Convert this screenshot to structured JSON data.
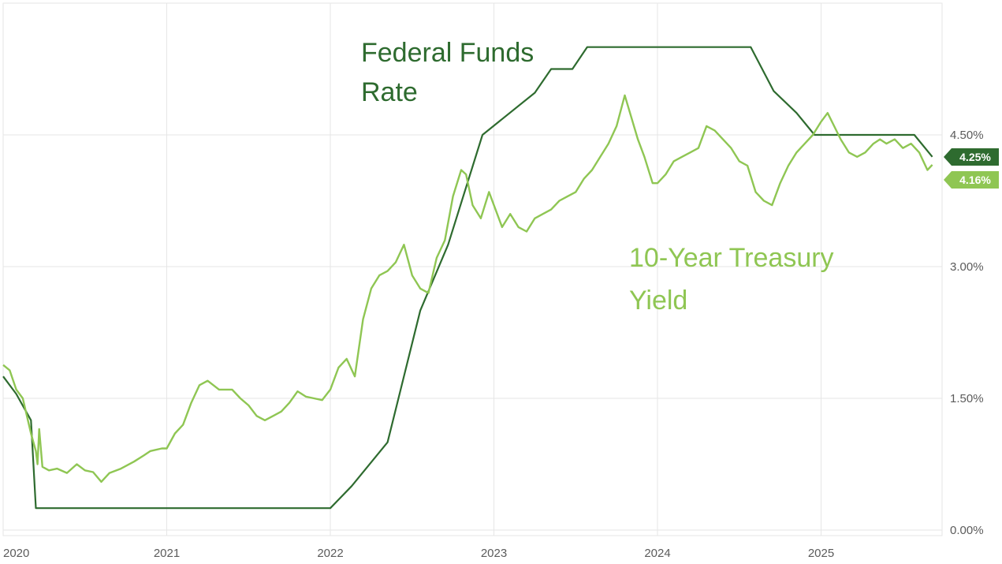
{
  "chart_data": {
    "type": "line",
    "title": "",
    "xlabel": "",
    "ylabel": "",
    "x_ticks": [
      "2020",
      "2021",
      "2022",
      "2023",
      "2024",
      "2025"
    ],
    "y_ticks": [
      "0.00%",
      "1.50%",
      "3.00%",
      "4.50%"
    ],
    "y_tick_values": [
      0,
      1.5,
      3.0,
      4.5
    ],
    "xlim": [
      2020.0,
      2025.73
    ],
    "ylim": [
      0,
      6.0
    ],
    "grid": true,
    "series": [
      {
        "name": "Federal Funds Rate",
        "label_lines": [
          "Federal Funds",
          "Rate"
        ],
        "color": "#2e6b2f",
        "end_value_label": "4.25%",
        "points": [
          [
            2020.0,
            1.75
          ],
          [
            2020.08,
            1.55
          ],
          [
            2020.17,
            1.25
          ],
          [
            2020.2,
            0.25
          ],
          [
            2021.0,
            0.25
          ],
          [
            2022.0,
            0.25
          ],
          [
            2022.13,
            0.5
          ],
          [
            2022.35,
            1.0
          ],
          [
            2022.55,
            2.5
          ],
          [
            2022.72,
            3.25
          ],
          [
            2022.93,
            4.5
          ],
          [
            2023.25,
            4.98
          ],
          [
            2023.35,
            5.25
          ],
          [
            2023.48,
            5.25
          ],
          [
            2023.57,
            5.5
          ],
          [
            2024.0,
            5.5
          ],
          [
            2024.57,
            5.5
          ],
          [
            2024.71,
            5.0
          ],
          [
            2024.85,
            4.75
          ],
          [
            2024.96,
            4.5
          ],
          [
            2025.0,
            4.5
          ],
          [
            2025.57,
            4.5
          ],
          [
            2025.68,
            4.25
          ]
        ]
      },
      {
        "name": "10-Year Treasury Yield",
        "label_lines": [
          "10-Year Treasury",
          "Yield"
        ],
        "color": "#8fc653",
        "end_value_label": "4.16%",
        "points": [
          [
            2020.0,
            1.88
          ],
          [
            2020.04,
            1.82
          ],
          [
            2020.08,
            1.6
          ],
          [
            2020.12,
            1.5
          ],
          [
            2020.17,
            1.1
          ],
          [
            2020.2,
            0.9
          ],
          [
            2020.21,
            0.75
          ],
          [
            2020.22,
            1.15
          ],
          [
            2020.24,
            0.72
          ],
          [
            2020.28,
            0.68
          ],
          [
            2020.33,
            0.7
          ],
          [
            2020.39,
            0.65
          ],
          [
            2020.45,
            0.75
          ],
          [
            2020.5,
            0.68
          ],
          [
            2020.55,
            0.66
          ],
          [
            2020.6,
            0.55
          ],
          [
            2020.65,
            0.65
          ],
          [
            2020.72,
            0.7
          ],
          [
            2020.8,
            0.78
          ],
          [
            2020.86,
            0.85
          ],
          [
            2020.9,
            0.9
          ],
          [
            2020.97,
            0.93
          ],
          [
            2021.0,
            0.93
          ],
          [
            2021.05,
            1.1
          ],
          [
            2021.1,
            1.2
          ],
          [
            2021.15,
            1.45
          ],
          [
            2021.2,
            1.65
          ],
          [
            2021.25,
            1.7
          ],
          [
            2021.32,
            1.6
          ],
          [
            2021.4,
            1.6
          ],
          [
            2021.45,
            1.5
          ],
          [
            2021.5,
            1.42
          ],
          [
            2021.55,
            1.3
          ],
          [
            2021.6,
            1.25
          ],
          [
            2021.65,
            1.3
          ],
          [
            2021.7,
            1.35
          ],
          [
            2021.75,
            1.45
          ],
          [
            2021.8,
            1.58
          ],
          [
            2021.85,
            1.52
          ],
          [
            2021.9,
            1.5
          ],
          [
            2021.95,
            1.48
          ],
          [
            2022.0,
            1.6
          ],
          [
            2022.05,
            1.85
          ],
          [
            2022.1,
            1.95
          ],
          [
            2022.15,
            1.75
          ],
          [
            2022.2,
            2.4
          ],
          [
            2022.25,
            2.75
          ],
          [
            2022.3,
            2.9
          ],
          [
            2022.35,
            2.95
          ],
          [
            2022.4,
            3.05
          ],
          [
            2022.45,
            3.25
          ],
          [
            2022.5,
            2.9
          ],
          [
            2022.55,
            2.75
          ],
          [
            2022.6,
            2.7
          ],
          [
            2022.65,
            3.1
          ],
          [
            2022.7,
            3.3
          ],
          [
            2022.75,
            3.8
          ],
          [
            2022.8,
            4.1
          ],
          [
            2022.83,
            4.05
          ],
          [
            2022.87,
            3.7
          ],
          [
            2022.92,
            3.55
          ],
          [
            2022.97,
            3.85
          ],
          [
            2023.0,
            3.7
          ],
          [
            2023.05,
            3.45
          ],
          [
            2023.1,
            3.6
          ],
          [
            2023.15,
            3.45
          ],
          [
            2023.2,
            3.4
          ],
          [
            2023.25,
            3.55
          ],
          [
            2023.3,
            3.6
          ],
          [
            2023.35,
            3.65
          ],
          [
            2023.4,
            3.75
          ],
          [
            2023.45,
            3.8
          ],
          [
            2023.5,
            3.85
          ],
          [
            2023.55,
            4.0
          ],
          [
            2023.6,
            4.1
          ],
          [
            2023.65,
            4.25
          ],
          [
            2023.7,
            4.4
          ],
          [
            2023.75,
            4.6
          ],
          [
            2023.8,
            4.95
          ],
          [
            2023.84,
            4.7
          ],
          [
            2023.88,
            4.45
          ],
          [
            2023.92,
            4.25
          ],
          [
            2023.97,
            3.95
          ],
          [
            2024.0,
            3.95
          ],
          [
            2024.05,
            4.05
          ],
          [
            2024.1,
            4.2
          ],
          [
            2024.15,
            4.25
          ],
          [
            2024.2,
            4.3
          ],
          [
            2024.25,
            4.35
          ],
          [
            2024.3,
            4.6
          ],
          [
            2024.35,
            4.55
          ],
          [
            2024.4,
            4.45
          ],
          [
            2024.45,
            4.35
          ],
          [
            2024.5,
            4.2
          ],
          [
            2024.55,
            4.15
          ],
          [
            2024.6,
            3.85
          ],
          [
            2024.65,
            3.75
          ],
          [
            2024.7,
            3.7
          ],
          [
            2024.75,
            3.95
          ],
          [
            2024.8,
            4.15
          ],
          [
            2024.85,
            4.3
          ],
          [
            2024.9,
            4.4
          ],
          [
            2024.95,
            4.5
          ],
          [
            2025.0,
            4.65
          ],
          [
            2025.04,
            4.75
          ],
          [
            2025.08,
            4.6
          ],
          [
            2025.12,
            4.45
          ],
          [
            2025.17,
            4.3
          ],
          [
            2025.22,
            4.25
          ],
          [
            2025.27,
            4.3
          ],
          [
            2025.32,
            4.4
          ],
          [
            2025.36,
            4.45
          ],
          [
            2025.4,
            4.4
          ],
          [
            2025.45,
            4.45
          ],
          [
            2025.5,
            4.35
          ],
          [
            2025.55,
            4.4
          ],
          [
            2025.6,
            4.3
          ],
          [
            2025.65,
            4.1
          ],
          [
            2025.68,
            4.16
          ]
        ]
      }
    ]
  }
}
